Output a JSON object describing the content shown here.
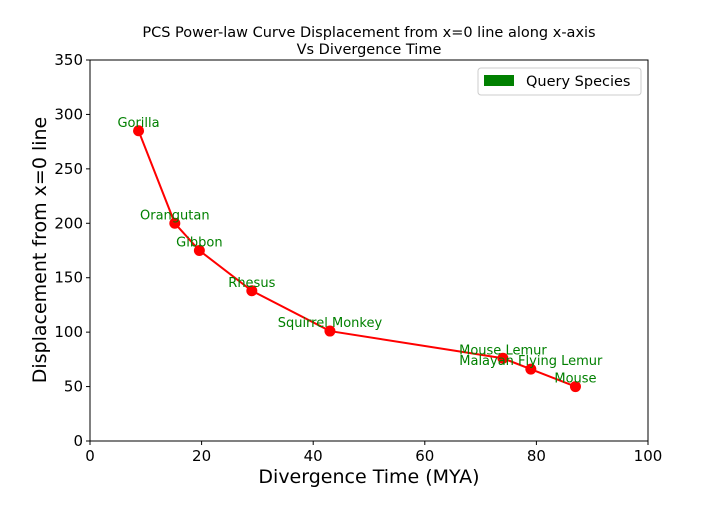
{
  "chart_data": {
    "type": "line",
    "title_line1": "PCS Power-law Curve Displacement from x=0 line along x-axis",
    "title_line2": "Vs Divergence Time",
    "xlabel": "Divergence Time (MYA)",
    "ylabel": "Displacement from x=0 line",
    "xlim": [
      0,
      100
    ],
    "ylim": [
      0,
      350
    ],
    "x_ticks": [
      "0",
      "20",
      "40",
      "60",
      "80",
      "100"
    ],
    "y_ticks": [
      "0",
      "50",
      "100",
      "150",
      "200",
      "250",
      "300",
      "350"
    ],
    "grid": false,
    "legend": {
      "label": "Query Species",
      "position": "top-right"
    },
    "colors": {
      "line": "#ff0000",
      "marker": "#ff0000",
      "label": "#008000",
      "legend_patch": "#008000"
    },
    "points": [
      {
        "label": "Gorilla",
        "x": 8.7,
        "y": 285
      },
      {
        "label": "Orangutan",
        "x": 15.2,
        "y": 200
      },
      {
        "label": "Gibbon",
        "x": 19.6,
        "y": 175
      },
      {
        "label": "Rhesus",
        "x": 29.0,
        "y": 138
      },
      {
        "label": "Squirrel Monkey",
        "x": 43.0,
        "y": 101
      },
      {
        "label": "Mouse Lemur",
        "x": 74.0,
        "y": 76
      },
      {
        "label": "Malayan Flying Lemur",
        "x": 79.0,
        "y": 66
      },
      {
        "label": "Mouse",
        "x": 87.0,
        "y": 50
      }
    ]
  }
}
